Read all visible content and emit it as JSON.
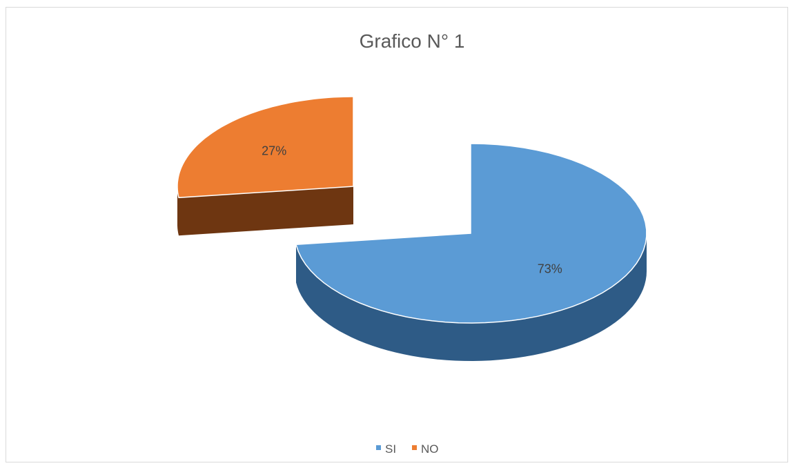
{
  "chart_data": {
    "type": "pie",
    "style": "3d-exploded",
    "title": "Grafico N° 1",
    "slices": [
      {
        "name": "SI",
        "value": 73,
        "label": "73%",
        "color": "#5b9bd5",
        "side_color": "#2e5b86"
      },
      {
        "name": "NO",
        "value": 27,
        "label": "27%",
        "color": "#ed7d31",
        "side_color": "#6e3611"
      }
    ],
    "legend": {
      "position": "bottom",
      "items": [
        "SI",
        "NO"
      ]
    }
  }
}
